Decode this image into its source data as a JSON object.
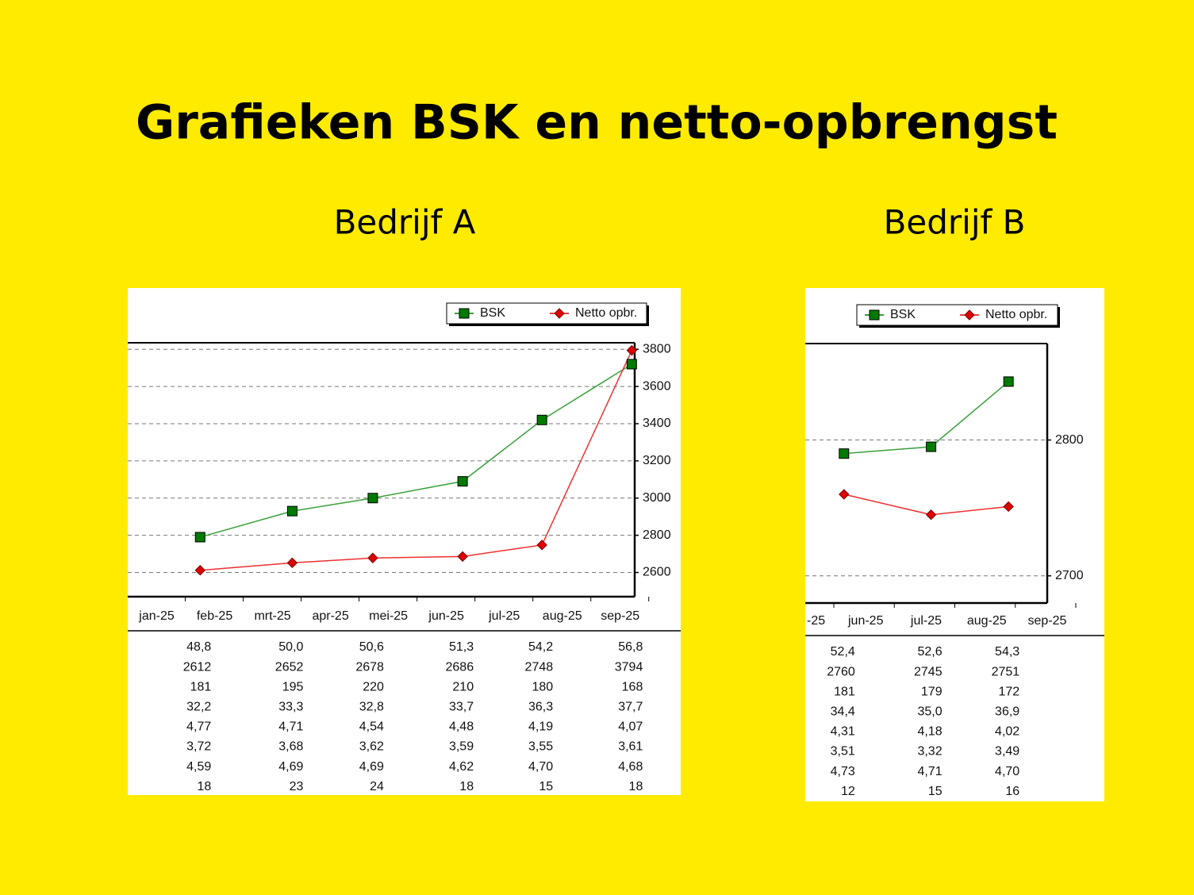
{
  "title": "Grafieken BSK en netto-opbrengst",
  "chart_data": [
    {
      "type": "line",
      "title": "Bedrijf A",
      "x": [
        1.75,
        3.34,
        4.73,
        6.28,
        7.65,
        9.2
      ],
      "xlim": [
        0.5,
        9.25
      ],
      "xticks": [
        {
          "value": 1,
          "label": "jan-25"
        },
        {
          "value": 2,
          "label": "feb-25"
        },
        {
          "value": 3,
          "label": "mrt-25"
        },
        {
          "value": 4,
          "label": "apr-25"
        },
        {
          "value": 5,
          "label": "mei-25"
        },
        {
          "value": 6,
          "label": "jun-25"
        },
        {
          "value": 7,
          "label": "jul-25"
        },
        {
          "value": 8,
          "label": "aug-25"
        },
        {
          "value": 9,
          "label": "sep-25"
        }
      ],
      "ylim": [
        2470,
        3835
      ],
      "yticks": [
        2600,
        2800,
        3000,
        3200,
        3400,
        3600,
        3800
      ],
      "grid": true,
      "series": [
        {
          "name": "BSK",
          "color": "#007a00",
          "values": [
            2790,
            2930,
            3000,
            3090,
            3420,
            3720
          ]
        },
        {
          "name": "Netto opbr.",
          "color": "#e00000",
          "values": [
            2612,
            2652,
            2678,
            2686,
            2748,
            3794
          ]
        }
      ],
      "table": {
        "rows": [
          [
            "48,8",
            "50,0",
            "50,6",
            "51,3",
            "54,2",
            "56,8"
          ],
          [
            "2612",
            "2652",
            "2678",
            "2686",
            "2748",
            "3794"
          ],
          [
            "181",
            "195",
            "220",
            "210",
            "180",
            "168"
          ],
          [
            "32,2",
            "33,3",
            "32,8",
            "33,7",
            "36,3",
            "37,7"
          ],
          [
            "4,77",
            "4,71",
            "4,54",
            "4,48",
            "4,19",
            "4,07"
          ],
          [
            "3,72",
            "3,68",
            "3,62",
            "3,59",
            "3,55",
            "3,61"
          ],
          [
            "4,59",
            "4,69",
            "4,69",
            "4,62",
            "4,70",
            "4,68"
          ],
          [
            "18",
            "23",
            "24",
            "18",
            "15",
            "18"
          ]
        ]
      }
    },
    {
      "type": "line",
      "title": "Bedrijf B",
      "x": [
        5.64,
        7.08,
        8.36
      ],
      "xlim": [
        5.0,
        9.0
      ],
      "xticks": [
        {
          "value": 5,
          "label": "-25"
        },
        {
          "value": 6,
          "label": "jun-25"
        },
        {
          "value": 7,
          "label": "jul-25"
        },
        {
          "value": 8,
          "label": "aug-25"
        },
        {
          "value": 9,
          "label": "sep-25"
        }
      ],
      "ylim": [
        2680,
        2871
      ],
      "yticks": [
        2700,
        2800
      ],
      "grid": true,
      "series": [
        {
          "name": "BSK",
          "color": "#007a00",
          "values": [
            2790,
            2795,
            2843
          ]
        },
        {
          "name": "Netto opbr.",
          "color": "#e00000",
          "values": [
            2760,
            2745,
            2751
          ]
        }
      ],
      "table": {
        "rows": [
          [
            "52,4",
            "52,6",
            "54,3"
          ],
          [
            "2760",
            "2745",
            "2751"
          ],
          [
            "181",
            "179",
            "172"
          ],
          [
            "34,4",
            "35,0",
            "36,9"
          ],
          [
            "4,31",
            "4,18",
            "4,02"
          ],
          [
            "3,51",
            "3,32",
            "3,49"
          ],
          [
            "4,73",
            "4,71",
            "4,70"
          ],
          [
            "12",
            "15",
            "16"
          ]
        ]
      }
    }
  ]
}
